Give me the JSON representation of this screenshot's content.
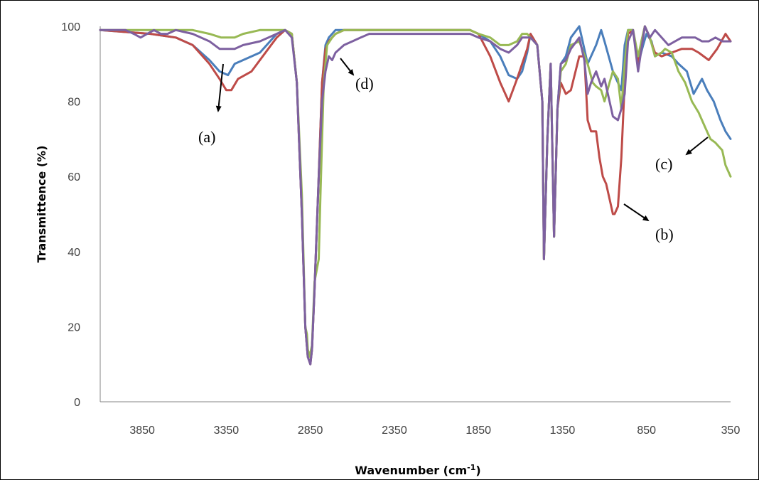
{
  "chart_data": {
    "type": "line",
    "xlabel": "Wavenumber (cm",
    "xlabel_sup": "-1",
    "xlabel_end": ")",
    "ylabel": "Transmittence (%)",
    "xlim": [
      4100,
      350
    ],
    "x_reversed": true,
    "ylim": [
      0,
      100
    ],
    "x_ticks": [
      3850,
      3350,
      2850,
      2350,
      1850,
      1350,
      850,
      350
    ],
    "y_ticks": [
      0,
      20,
      40,
      60,
      80,
      100
    ],
    "grid": false,
    "legend": "none",
    "colors": {
      "blue": "#4a7ebb",
      "red": "#be4b48",
      "green": "#98b954",
      "purple": "#7d60a0"
    },
    "series": [
      {
        "color_key": "blue",
        "x": [
          4100,
          3800,
          3650,
          3550,
          3450,
          3390,
          3340,
          3300,
          3250,
          3150,
          3050,
          3000,
          2960,
          2930,
          2900,
          2880,
          2865,
          2850,
          2840,
          2825,
          2800,
          2780,
          2760,
          2740,
          2720,
          2700,
          2650,
          2500,
          2300,
          2100,
          1900,
          1850,
          1780,
          1720,
          1670,
          1620,
          1590,
          1560,
          1540,
          1500,
          1470,
          1460,
          1440,
          1420,
          1400,
          1380,
          1360,
          1330,
          1300,
          1250,
          1200,
          1150,
          1120,
          1100,
          1050,
          1020,
          1000,
          980,
          960,
          930,
          900,
          870,
          850,
          820,
          800,
          760,
          700,
          660,
          610,
          570,
          520,
          490,
          450,
          410,
          380,
          350
        ],
        "y": [
          99,
          98,
          97,
          95,
          91,
          88,
          87,
          90,
          91,
          93,
          98,
          99,
          98,
          85,
          50,
          20,
          12,
          10,
          14,
          30,
          60,
          85,
          95,
          97,
          98,
          99,
          99,
          99,
          99,
          99,
          99,
          98,
          96,
          92,
          87,
          86,
          88,
          93,
          98,
          95,
          80,
          38,
          70,
          90,
          44,
          78,
          90,
          92,
          97,
          100,
          90,
          95,
          99,
          96,
          88,
          85,
          83,
          95,
          99,
          99,
          90,
          95,
          98,
          96,
          92,
          93,
          92,
          90,
          88,
          82,
          86,
          83,
          80,
          75,
          72,
          70
        ]
      },
      {
        "color_key": "red",
        "x": [
          4100,
          3800,
          3650,
          3550,
          3450,
          3390,
          3350,
          3320,
          3280,
          3200,
          3100,
          3050,
          3000,
          2960,
          2930,
          2900,
          2880,
          2865,
          2850,
          2840,
          2825,
          2800,
          2780,
          2760,
          2740,
          2720,
          2700,
          2650,
          2550,
          2450,
          2350,
          2200,
          2050,
          1900,
          1850,
          1780,
          1720,
          1670,
          1620,
          1590,
          1560,
          1540,
          1500,
          1470,
          1460,
          1440,
          1420,
          1400,
          1380,
          1360,
          1330,
          1300,
          1250,
          1220,
          1200,
          1180,
          1150,
          1130,
          1110,
          1090,
          1060,
          1050,
          1040,
          1020,
          1000,
          980,
          960,
          930,
          900,
          880,
          860,
          840,
          800,
          760,
          700,
          640,
          580,
          540,
          480,
          430,
          380,
          350
        ],
        "y": [
          99,
          98,
          97,
          95,
          90,
          86,
          83,
          83,
          86,
          88,
          94,
          97,
          99,
          98,
          85,
          50,
          20,
          12,
          10,
          14,
          30,
          60,
          85,
          94,
          96,
          97,
          98,
          99,
          99,
          99,
          99,
          99,
          99,
          99,
          98,
          92,
          85,
          80,
          86,
          90,
          94,
          98,
          95,
          80,
          38,
          70,
          90,
          44,
          78,
          85,
          82,
          83,
          92,
          92,
          75,
          72,
          72,
          65,
          60,
          58,
          52,
          50,
          50,
          52,
          65,
          85,
          98,
          99,
          90,
          96,
          100,
          98,
          93,
          92,
          93,
          94,
          94,
          93,
          91,
          94,
          98,
          96
        ]
      },
      {
        "color_key": "green",
        "x": [
          4100,
          3800,
          3650,
          3550,
          3450,
          3380,
          3330,
          3300,
          3250,
          3150,
          3050,
          3000,
          2960,
          2930,
          2900,
          2880,
          2870,
          2865,
          2855,
          2840,
          2825,
          2800,
          2790,
          2780,
          2770,
          2750,
          2720,
          2700,
          2650,
          2500,
          2300,
          2100,
          1900,
          1850,
          1780,
          1720,
          1670,
          1620,
          1590,
          1560,
          1540,
          1500,
          1470,
          1460,
          1440,
          1420,
          1400,
          1380,
          1360,
          1330,
          1300,
          1250,
          1200,
          1170,
          1150,
          1120,
          1100,
          1070,
          1050,
          1020,
          1000,
          980,
          960,
          930,
          900,
          880,
          860,
          830,
          800,
          760,
          740,
          700,
          660,
          620,
          580,
          540,
          500,
          470,
          440,
          420,
          400,
          380,
          350
        ],
        "y": [
          99,
          99,
          99,
          99,
          98,
          97,
          97,
          97,
          98,
          99,
          99,
          99,
          98,
          85,
          55,
          20,
          18,
          14,
          12,
          15,
          32,
          38,
          55,
          70,
          85,
          95,
          97,
          98,
          99,
          99,
          99,
          99,
          99,
          98,
          97,
          95,
          95,
          96,
          98,
          98,
          97,
          95,
          80,
          38,
          70,
          90,
          44,
          78,
          88,
          90,
          95,
          96,
          90,
          85,
          84,
          83,
          80,
          85,
          88,
          86,
          78,
          90,
          99,
          99,
          92,
          96,
          100,
          97,
          92,
          93,
          94,
          93,
          88,
          85,
          80,
          77,
          73,
          70,
          69,
          68,
          67,
          63,
          60
        ]
      },
      {
        "color_key": "purple",
        "x": [
          4100,
          3950,
          3900,
          3860,
          3820,
          3780,
          3740,
          3700,
          3650,
          3550,
          3450,
          3390,
          3340,
          3300,
          3250,
          3150,
          3050,
          3000,
          2960,
          2930,
          2900,
          2880,
          2865,
          2850,
          2840,
          2825,
          2800,
          2780,
          2760,
          2740,
          2720,
          2700,
          2650,
          2600,
          2550,
          2500,
          2400,
          2300,
          2100,
          1900,
          1850,
          1780,
          1720,
          1670,
          1620,
          1590,
          1560,
          1540,
          1500,
          1470,
          1460,
          1440,
          1420,
          1400,
          1380,
          1360,
          1330,
          1300,
          1250,
          1220,
          1200,
          1180,
          1150,
          1120,
          1100,
          1070,
          1050,
          1020,
          1000,
          980,
          960,
          930,
          900,
          880,
          860,
          830,
          800,
          760,
          720,
          680,
          640,
          600,
          560,
          520,
          480,
          440,
          400,
          370,
          350
        ],
        "y": [
          99,
          99,
          98,
          97,
          98,
          99,
          98,
          98,
          99,
          98,
          96,
          94,
          94,
          94,
          95,
          96,
          98,
          99,
          97,
          85,
          50,
          20,
          12,
          10,
          14,
          30,
          60,
          80,
          88,
          92,
          91,
          93,
          95,
          96,
          97,
          98,
          98,
          98,
          98,
          98,
          97,
          96,
          94,
          93,
          95,
          97,
          97,
          97,
          95,
          80,
          38,
          70,
          90,
          44,
          78,
          90,
          91,
          94,
          97,
          91,
          82,
          85,
          88,
          84,
          86,
          80,
          76,
          75,
          78,
          82,
          96,
          99,
          88,
          94,
          100,
          97,
          99,
          97,
          95,
          96,
          97,
          97,
          97,
          96,
          96,
          97,
          96,
          96,
          96
        ]
      }
    ],
    "annotations": [
      {
        "text": "(a)"
      },
      {
        "text": "(b)"
      },
      {
        "text": "(c)"
      },
      {
        "text": "(d)"
      }
    ]
  }
}
